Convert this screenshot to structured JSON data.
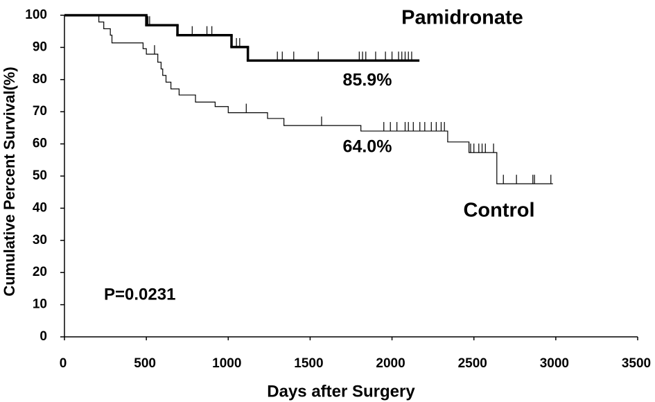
{
  "chart_data": {
    "type": "km",
    "xlabel": "Days after Surgery",
    "ylabel": "Cumulative Percent Survival(%)",
    "xlim": [
      0,
      3500
    ],
    "ylim": [
      0,
      100
    ],
    "xticks": [
      0,
      500,
      1000,
      1500,
      2000,
      2500,
      3000,
      3500
    ],
    "yticks": [
      0,
      10,
      20,
      30,
      40,
      50,
      60,
      70,
      80,
      90,
      100
    ],
    "grid": false,
    "series": [
      {
        "name": "Pamidronate",
        "color": "#000000",
        "width": 3.5,
        "value_label": "85.9%",
        "x": [
          0,
          500,
          690,
          1020,
          1120,
          2160
        ],
        "values": [
          100,
          96.9,
          93.8,
          90.1,
          85.9,
          85.9
        ],
        "censored_x": [
          510,
          520,
          780,
          870,
          900,
          1050,
          1070,
          1300,
          1330,
          1400,
          1550,
          1800,
          1820,
          1840,
          1900,
          1960,
          2000,
          2040,
          2060,
          2080,
          2100,
          2120
        ]
      },
      {
        "name": "Control",
        "color": "#000000",
        "width": 1.2,
        "value_label": "64.0%",
        "x": [
          0,
          210,
          240,
          280,
          290,
          480,
          500,
          570,
          590,
          600,
          620,
          650,
          700,
          800,
          920,
          1000,
          1240,
          1340,
          1810,
          2340,
          2470,
          2640,
          2980
        ],
        "values": [
          100,
          97.9,
          95.8,
          93.8,
          91.4,
          89.6,
          87.9,
          85.4,
          83.3,
          81.3,
          79.2,
          77.1,
          75.2,
          73.0,
          71.6,
          69.7,
          67.9,
          65.7,
          64.0,
          60.6,
          57.3,
          47.6,
          47.6
        ],
        "censored_x": [
          550,
          1110,
          1570,
          1950,
          1990,
          2030,
          2080,
          2100,
          2130,
          2170,
          2200,
          2240,
          2270,
          2300,
          2320,
          2480,
          2500,
          2530,
          2550,
          2570,
          2620,
          2680,
          2760,
          2860,
          2870,
          2970
        ]
      }
    ],
    "annotations": [
      "P=0.0231"
    ]
  }
}
